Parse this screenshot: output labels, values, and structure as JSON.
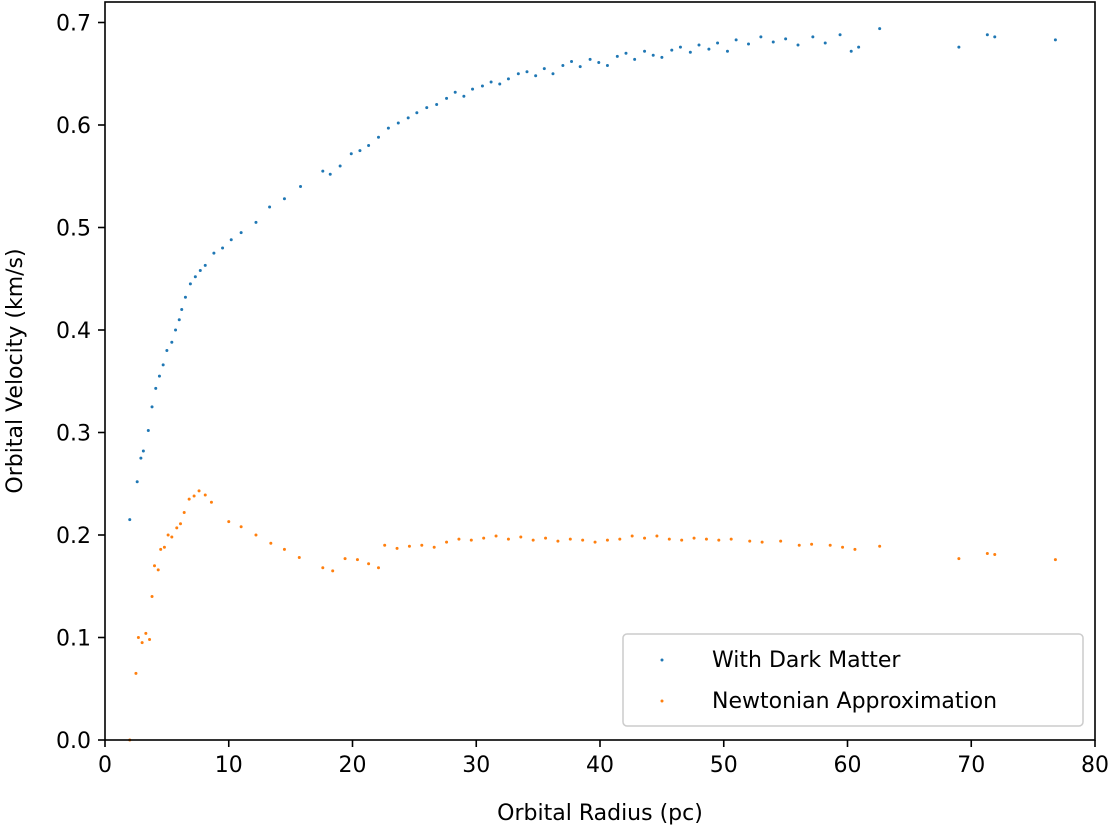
{
  "chart_data": {
    "type": "scatter",
    "title": "",
    "xlabel": "Orbital Radius (pc)",
    "ylabel": "Orbital Velocity (km/s)",
    "xlim": [
      0,
      80
    ],
    "ylim": [
      0,
      0.72
    ],
    "xticks": [
      0,
      10,
      20,
      30,
      40,
      50,
      60,
      70,
      80
    ],
    "xtick_labels": [
      "0",
      "10",
      "20",
      "30",
      "40",
      "50",
      "60",
      "70",
      "80"
    ],
    "yticks": [
      0,
      0.1,
      0.2,
      0.3,
      0.4,
      0.5,
      0.6,
      0.7
    ],
    "ytick_labels": [
      "0.0",
      "0.1",
      "0.2",
      "0.3",
      "0.4",
      "0.5",
      "0.6",
      "0.7"
    ],
    "grid": false,
    "legend_position": "lower-right",
    "series": [
      {
        "name": "With Dark Matter",
        "color": "#1f77b4",
        "points": [
          [
            2.0,
            0.215
          ],
          [
            2.6,
            0.252
          ],
          [
            2.9,
            0.275
          ],
          [
            3.1,
            0.282
          ],
          [
            3.5,
            0.302
          ],
          [
            3.8,
            0.325
          ],
          [
            4.1,
            0.343
          ],
          [
            4.4,
            0.355
          ],
          [
            4.7,
            0.366
          ],
          [
            5.0,
            0.38
          ],
          [
            5.4,
            0.388
          ],
          [
            5.7,
            0.4
          ],
          [
            6.0,
            0.41
          ],
          [
            6.2,
            0.42
          ],
          [
            6.5,
            0.432
          ],
          [
            6.9,
            0.445
          ],
          [
            7.3,
            0.452
          ],
          [
            7.7,
            0.458
          ],
          [
            8.1,
            0.463
          ],
          [
            8.8,
            0.475
          ],
          [
            9.5,
            0.48
          ],
          [
            10.2,
            0.488
          ],
          [
            11.0,
            0.495
          ],
          [
            12.2,
            0.505
          ],
          [
            13.3,
            0.52
          ],
          [
            14.5,
            0.528
          ],
          [
            15.8,
            0.54
          ],
          [
            17.6,
            0.555
          ],
          [
            18.2,
            0.552
          ],
          [
            19.0,
            0.56
          ],
          [
            19.9,
            0.572
          ],
          [
            20.6,
            0.575
          ],
          [
            21.3,
            0.58
          ],
          [
            22.1,
            0.588
          ],
          [
            22.9,
            0.597
          ],
          [
            23.7,
            0.602
          ],
          [
            24.5,
            0.607
          ],
          [
            25.2,
            0.612
          ],
          [
            26.0,
            0.617
          ],
          [
            26.8,
            0.62
          ],
          [
            27.6,
            0.626
          ],
          [
            28.3,
            0.632
          ],
          [
            29.0,
            0.628
          ],
          [
            29.7,
            0.635
          ],
          [
            30.5,
            0.638
          ],
          [
            31.2,
            0.642
          ],
          [
            31.9,
            0.64
          ],
          [
            32.6,
            0.645
          ],
          [
            33.4,
            0.65
          ],
          [
            34.1,
            0.652
          ],
          [
            34.8,
            0.648
          ],
          [
            35.5,
            0.655
          ],
          [
            36.2,
            0.65
          ],
          [
            37.0,
            0.658
          ],
          [
            37.7,
            0.662
          ],
          [
            38.4,
            0.657
          ],
          [
            39.2,
            0.664
          ],
          [
            39.9,
            0.661
          ],
          [
            40.6,
            0.658
          ],
          [
            41.4,
            0.667
          ],
          [
            42.1,
            0.67
          ],
          [
            42.8,
            0.664
          ],
          [
            43.6,
            0.672
          ],
          [
            44.3,
            0.668
          ],
          [
            45.0,
            0.666
          ],
          [
            45.8,
            0.673
          ],
          [
            46.5,
            0.676
          ],
          [
            47.3,
            0.671
          ],
          [
            48.0,
            0.678
          ],
          [
            48.8,
            0.674
          ],
          [
            49.5,
            0.68
          ],
          [
            50.3,
            0.672
          ],
          [
            51.0,
            0.683
          ],
          [
            52.0,
            0.679
          ],
          [
            53.0,
            0.686
          ],
          [
            54.0,
            0.681
          ],
          [
            55.0,
            0.684
          ],
          [
            56.0,
            0.678
          ],
          [
            57.2,
            0.686
          ],
          [
            58.2,
            0.68
          ],
          [
            59.4,
            0.688
          ],
          [
            60.3,
            0.672
          ],
          [
            60.9,
            0.676
          ],
          [
            62.6,
            0.694
          ],
          [
            69.0,
            0.676
          ],
          [
            71.3,
            0.688
          ],
          [
            71.9,
            0.686
          ],
          [
            76.8,
            0.683
          ]
        ]
      },
      {
        "name": "Newtonian Approximation",
        "color": "#ff7f0e",
        "points": [
          [
            2.0,
            0.0
          ],
          [
            2.5,
            0.065
          ],
          [
            2.7,
            0.1
          ],
          [
            3.0,
            0.095
          ],
          [
            3.3,
            0.104
          ],
          [
            3.6,
            0.098
          ],
          [
            3.8,
            0.14
          ],
          [
            4.0,
            0.17
          ],
          [
            4.3,
            0.166
          ],
          [
            4.5,
            0.186
          ],
          [
            4.8,
            0.188
          ],
          [
            5.1,
            0.2
          ],
          [
            5.4,
            0.198
          ],
          [
            5.8,
            0.207
          ],
          [
            6.1,
            0.211
          ],
          [
            6.4,
            0.222
          ],
          [
            6.8,
            0.235
          ],
          [
            7.2,
            0.238
          ],
          [
            7.6,
            0.243
          ],
          [
            8.1,
            0.239
          ],
          [
            8.6,
            0.232
          ],
          [
            10.0,
            0.213
          ],
          [
            11.0,
            0.208
          ],
          [
            12.2,
            0.2
          ],
          [
            13.4,
            0.192
          ],
          [
            14.5,
            0.186
          ],
          [
            15.7,
            0.178
          ],
          [
            17.6,
            0.168
          ],
          [
            18.4,
            0.165
          ],
          [
            19.4,
            0.177
          ],
          [
            20.4,
            0.176
          ],
          [
            21.3,
            0.172
          ],
          [
            22.1,
            0.168
          ],
          [
            22.6,
            0.19
          ],
          [
            23.6,
            0.187
          ],
          [
            24.6,
            0.189
          ],
          [
            25.6,
            0.19
          ],
          [
            26.6,
            0.188
          ],
          [
            27.6,
            0.193
          ],
          [
            28.6,
            0.196
          ],
          [
            29.6,
            0.195
          ],
          [
            30.6,
            0.197
          ],
          [
            31.6,
            0.199
          ],
          [
            32.6,
            0.196
          ],
          [
            33.6,
            0.198
          ],
          [
            34.6,
            0.195
          ],
          [
            35.6,
            0.197
          ],
          [
            36.6,
            0.194
          ],
          [
            37.6,
            0.196
          ],
          [
            38.6,
            0.195
          ],
          [
            39.6,
            0.193
          ],
          [
            40.6,
            0.195
          ],
          [
            41.6,
            0.196
          ],
          [
            42.6,
            0.199
          ],
          [
            43.6,
            0.197
          ],
          [
            44.6,
            0.199
          ],
          [
            45.6,
            0.196
          ],
          [
            46.6,
            0.195
          ],
          [
            47.6,
            0.197
          ],
          [
            48.6,
            0.196
          ],
          [
            49.6,
            0.195
          ],
          [
            50.6,
            0.196
          ],
          [
            52.1,
            0.194
          ],
          [
            53.1,
            0.193
          ],
          [
            54.6,
            0.194
          ],
          [
            56.1,
            0.19
          ],
          [
            57.1,
            0.191
          ],
          [
            58.6,
            0.19
          ],
          [
            59.6,
            0.188
          ],
          [
            60.6,
            0.186
          ],
          [
            62.6,
            0.189
          ],
          [
            69.0,
            0.177
          ],
          [
            71.3,
            0.182
          ],
          [
            71.9,
            0.181
          ],
          [
            76.8,
            0.176
          ]
        ]
      }
    ]
  }
}
